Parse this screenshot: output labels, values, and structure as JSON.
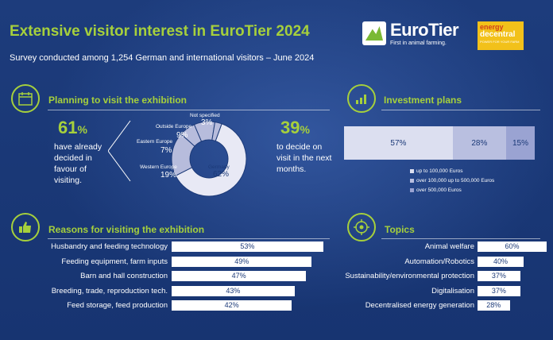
{
  "header": {
    "title": "Extensive visitor interest in EuroTier 2024",
    "subtitle": "Survey conducted among 1,254 German and international visitors – June 2024"
  },
  "logos": {
    "eurotier_name": "EuroTier",
    "eurotier_tagline": "First in animal farming.",
    "energy_line1": "energy",
    "energy_line2": "decentral",
    "energy_tagline": "POWER FOR YOUR FARM"
  },
  "sections": {
    "planning": "Planning to visit the exhibition",
    "investment": "Investment plans",
    "reasons": "Reasons for visiting the exhibition",
    "topics": "Topics"
  },
  "planning": {
    "left_value": "61",
    "left_unit": "%",
    "left_note": "have already decided in favour of visiting.",
    "right_value": "39",
    "right_unit": "%",
    "right_note": "to decide on visit in the next months."
  },
  "chart_data": [
    {
      "type": "pie",
      "categories": [
        "Germany",
        "Western Europe",
        "Eastern Europe",
        "Outside Europe",
        "Not specified"
      ],
      "values": [
        62,
        19,
        7,
        9,
        3
      ],
      "labels": [
        "62%",
        "19%",
        "7%",
        "9%",
        "3%"
      ]
    },
    {
      "type": "bar",
      "orientation": "stacked-horizontal",
      "categories": [
        "up to 100,000 Euros",
        "over 100,000 up to 500,000 Euros",
        "over 500,000 Euros"
      ],
      "values": [
        57,
        28,
        15
      ],
      "labels": [
        "57%",
        "28%",
        "15%"
      ],
      "colors": [
        "#dcdff0",
        "#b9bfe0",
        "#9aa3d2"
      ],
      "legend": "bottom-left"
    },
    {
      "type": "bar",
      "orientation": "horizontal",
      "categories": [
        "Husbandry and feeding technology",
        "Feeding equipment, farm inputs",
        "Barn and hall construction",
        "Breeding, trade, reproduction tech.",
        "Feed storage, feed production"
      ],
      "values": [
        53,
        49,
        47,
        43,
        42
      ],
      "labels": [
        "53%",
        "49%",
        "47%",
        "43%",
        "42%"
      ]
    },
    {
      "type": "bar",
      "orientation": "horizontal",
      "categories": [
        "Animal welfare",
        "Automation/Robotics",
        "Sustainability/environmental protection",
        "Digitalisation",
        "Decentralised energy generation"
      ],
      "values": [
        60,
        40,
        37,
        37,
        28
      ],
      "labels": [
        "60%",
        "40%",
        "37%",
        "37%",
        "28%"
      ]
    }
  ],
  "colors": {
    "background": "#1c3a78",
    "accent": "#a6d03c",
    "bar": "#ffffff",
    "donut_main": "#e8e9f5",
    "donut_other": "#b7bcdc"
  }
}
